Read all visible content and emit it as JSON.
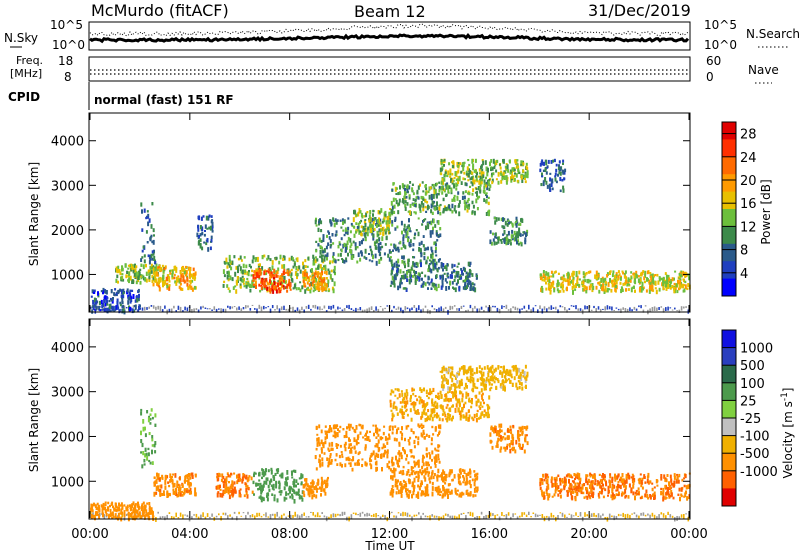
{
  "header": {
    "station": "McMurdo (fitACF)",
    "beam": "Beam 12",
    "date": "31/Dec/2019"
  },
  "strips": {
    "nsky_label": "N.Sky",
    "nsearch_label": "N.Search",
    "nsky_ticks": [
      "10^5",
      "10^0"
    ],
    "nsearch_ticks": [
      "10^5",
      "10^0"
    ],
    "freq_label_line1": "Freq.",
    "freq_label_line2": "[MHz]",
    "freq_ticks": [
      "18",
      "8"
    ],
    "nave_label": "Nave",
    "nave_ticks": [
      "60",
      "0"
    ],
    "cpid_label": "CPID",
    "cpid_text": "normal (fast) 151 RF"
  },
  "colors": {
    "power": [
      "#0000ff",
      "#1f3fbf",
      "#2a5a8a",
      "#3c8a4a",
      "#6cbf3c",
      "#e8c000",
      "#ff9a00",
      "#ff6a00",
      "#ff3000",
      "#e00000"
    ],
    "velocity": [
      "#1010e0",
      "#2a3fbf",
      "#2a6a4a",
      "#4c9a4c",
      "#80d040",
      "#c0c0c0",
      "#f0b000",
      "#ff9000",
      "#ff6000",
      "#e00000"
    ],
    "ground": "#9a9a9a"
  },
  "chart_data": [
    {
      "type": "heatmap",
      "panel": "power",
      "ylabel": "Slant Range [km]",
      "xlabel": "Time UT",
      "x_ticks": [
        "00:00",
        "04:00",
        "08:00",
        "12:00",
        "16:00",
        "20:00",
        "00:00"
      ],
      "xlim_hours": [
        0,
        24
      ],
      "ylim_km": [
        180,
        4600
      ],
      "y_ticks": [
        1000,
        2000,
        3000,
        4000
      ],
      "colorbar": {
        "label": "Power [dB]",
        "ticks": [
          4,
          8,
          12,
          16,
          20,
          24,
          28
        ],
        "range": [
          0,
          30
        ]
      },
      "patches": [
        {
          "t0": 0.0,
          "t1": 2.0,
          "r0": 200,
          "r1": 700,
          "v": 6
        },
        {
          "t0": 1.0,
          "t1": 3.0,
          "r0": 850,
          "r1": 1250,
          "v": 14
        },
        {
          "t0": 2.0,
          "t1": 2.6,
          "r0": 1300,
          "r1": 2650,
          "v": 8
        },
        {
          "t0": 2.5,
          "t1": 4.2,
          "r0": 700,
          "r1": 1200,
          "v": 18
        },
        {
          "t0": 4.2,
          "t1": 4.9,
          "r0": 1600,
          "r1": 2350,
          "v": 7
        },
        {
          "t0": 5.3,
          "t1": 9.8,
          "r0": 650,
          "r1": 1450,
          "v": 13
        },
        {
          "t0": 6.5,
          "t1": 8.0,
          "r0": 650,
          "r1": 1150,
          "v": 24
        },
        {
          "t0": 8.5,
          "t1": 9.5,
          "r0": 700,
          "r1": 1100,
          "v": 20
        },
        {
          "t0": 9.0,
          "t1": 14.0,
          "r0": 1300,
          "r1": 2300,
          "v": 10
        },
        {
          "t0": 10.5,
          "t1": 12.0,
          "r0": 1900,
          "r1": 2500,
          "v": 14
        },
        {
          "t0": 12.0,
          "t1": 16.0,
          "r0": 2400,
          "r1": 3100,
          "v": 12
        },
        {
          "t0": 14.0,
          "t1": 17.5,
          "r0": 3100,
          "r1": 3600,
          "v": 14
        },
        {
          "t0": 12.0,
          "t1": 15.5,
          "r0": 700,
          "r1": 1300,
          "v": 9
        },
        {
          "t0": 16.0,
          "t1": 17.5,
          "r0": 1700,
          "r1": 2300,
          "v": 10
        },
        {
          "t0": 18.0,
          "t1": 19.0,
          "r0": 2900,
          "r1": 3600,
          "v": 7
        },
        {
          "t0": 18.0,
          "t1": 24.0,
          "r0": 650,
          "r1": 1100,
          "v": 16
        }
      ]
    },
    {
      "type": "heatmap",
      "panel": "velocity",
      "ylabel": "Slant Range [km]",
      "xlabel": "Time UT",
      "x_ticks": [
        "00:00",
        "04:00",
        "08:00",
        "12:00",
        "16:00",
        "20:00",
        "00:00"
      ],
      "xlim_hours": [
        0,
        24
      ],
      "ylim_km": [
        180,
        4600
      ],
      "y_ticks": [
        1000,
        2000,
        3000,
        4000
      ],
      "colorbar": {
        "label": "Velocity [m s^-1]",
        "ticks": [
          1000,
          500,
          100,
          25,
          -25,
          -100,
          -500,
          -1000
        ]
      },
      "patches": [
        {
          "t0": 0.0,
          "t1": 2.5,
          "r0": 200,
          "r1": 550,
          "v": -300
        },
        {
          "t0": 2.0,
          "t1": 2.6,
          "r0": 1300,
          "r1": 2650,
          "v": 120
        },
        {
          "t0": 2.5,
          "t1": 4.2,
          "r0": 700,
          "r1": 1200,
          "v": -400
        },
        {
          "t0": 5.0,
          "t1": 6.5,
          "r0": 700,
          "r1": 1200,
          "v": -500
        },
        {
          "t0": 6.5,
          "t1": 8.5,
          "r0": 600,
          "r1": 1300,
          "v": 200
        },
        {
          "t0": 8.5,
          "t1": 9.5,
          "r0": 700,
          "r1": 1100,
          "v": -300
        },
        {
          "t0": 9.0,
          "t1": 14.0,
          "r0": 1300,
          "r1": 2300,
          "v": -200
        },
        {
          "t0": 12.0,
          "t1": 16.0,
          "r0": 2400,
          "r1": 3100,
          "v": -80
        },
        {
          "t0": 14.0,
          "t1": 17.5,
          "r0": 3100,
          "r1": 3600,
          "v": -60
        },
        {
          "t0": 12.0,
          "t1": 15.5,
          "r0": 700,
          "r1": 1300,
          "v": -300
        },
        {
          "t0": 16.0,
          "t1": 17.5,
          "r0": 1700,
          "r1": 2300,
          "v": -400
        },
        {
          "t0": 18.0,
          "t1": 24.0,
          "r0": 650,
          "r1": 1200,
          "v": -500
        }
      ]
    }
  ]
}
